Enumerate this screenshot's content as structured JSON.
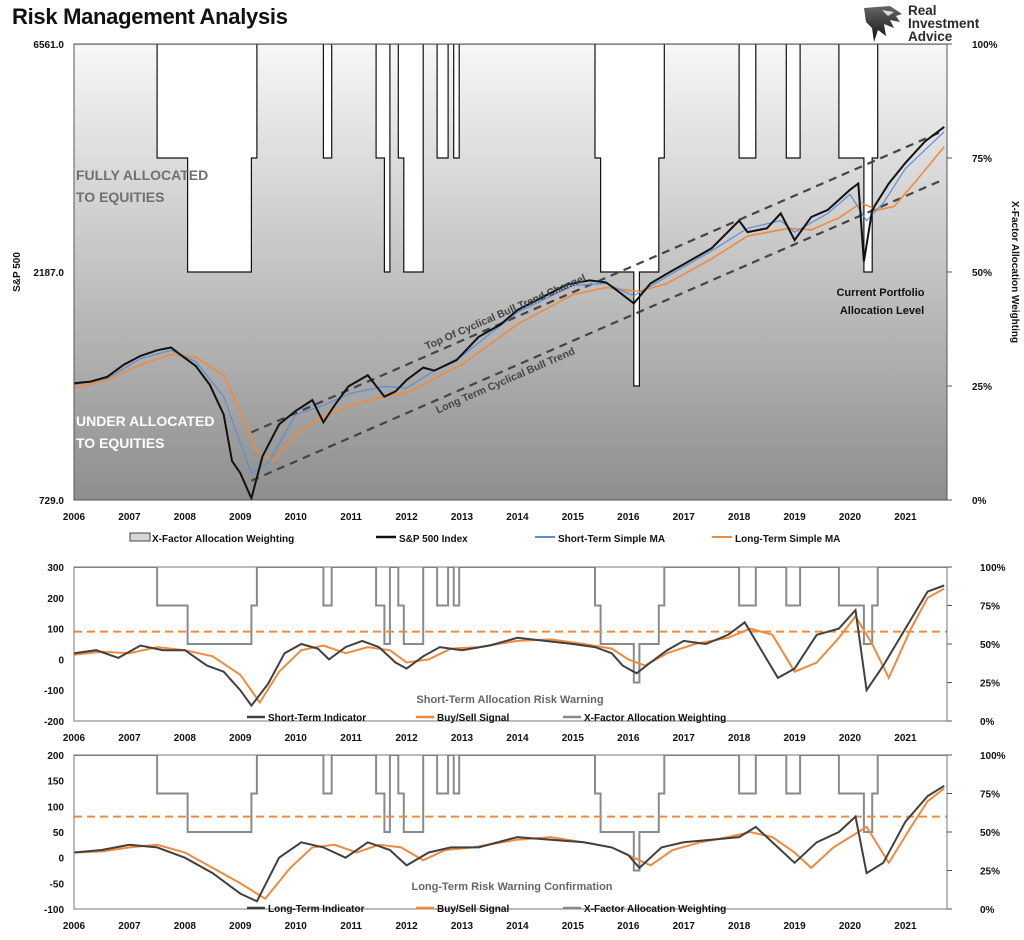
{
  "title": "Risk Management Analysis",
  "logo": {
    "lines": [
      "Real",
      "Investment",
      "Advice"
    ]
  },
  "colors": {
    "allocation_fill": "#ffffff",
    "allocation_line": "#111111",
    "sp500": "#111111",
    "short_ma": "#5b8fd4",
    "long_ma": "#f08a3c",
    "indicator": "#404040",
    "signal": "#f08a3c",
    "xfactor_line": "#8a8a8a",
    "threshold": "#f08a3c"
  },
  "chart_data": [
    {
      "type": "line",
      "id": "main",
      "xlim": [
        2006,
        2021.75
      ],
      "x_ticks": [
        "2006",
        "2007",
        "2008",
        "2009",
        "2010",
        "2011",
        "2012",
        "2013",
        "2014",
        "2015",
        "2016",
        "2017",
        "2018",
        "2019",
        "2020",
        "2021"
      ],
      "y_left": {
        "label": "S&P 500",
        "ticks": [
          "6561.0",
          "2187.0",
          "729.0"
        ],
        "scale": "log",
        "range": [
          729,
          6561
        ]
      },
      "y_right": {
        "label": "X-Factor Allocation Weighting",
        "ticks": [
          "100%",
          "75%",
          "50%",
          "25%",
          "0%"
        ],
        "range": [
          0,
          100
        ]
      },
      "allocation_steps": [
        [
          2006.0,
          100
        ],
        [
          2007.5,
          75
        ],
        [
          2008.05,
          50
        ],
        [
          2009.2,
          75
        ],
        [
          2009.3,
          100
        ],
        [
          2010.5,
          75
        ],
        [
          2010.65,
          100
        ],
        [
          2011.45,
          75
        ],
        [
          2011.6,
          50
        ],
        [
          2011.7,
          100
        ],
        [
          2011.85,
          75
        ],
        [
          2011.95,
          50
        ],
        [
          2012.3,
          100
        ],
        [
          2012.3,
          100
        ],
        [
          2012.55,
          75
        ],
        [
          2012.75,
          100
        ],
        [
          2012.85,
          75
        ],
        [
          2012.95,
          100
        ],
        [
          2015.4,
          75
        ],
        [
          2015.5,
          50
        ],
        [
          2016.1,
          25
        ],
        [
          2016.2,
          50
        ],
        [
          2016.55,
          75
        ],
        [
          2016.65,
          100
        ],
        [
          2017.5,
          100
        ],
        [
          2018.0,
          75
        ],
        [
          2018.3,
          100
        ],
        [
          2018.85,
          75
        ],
        [
          2019.1,
          100
        ],
        [
          2019.8,
          75
        ],
        [
          2020.25,
          50
        ],
        [
          2020.4,
          75
        ],
        [
          2020.5,
          100
        ],
        [
          2020.5,
          100
        ],
        [
          2021.75,
          100
        ]
      ],
      "sp500": {
        "name": "S&P 500 Index",
        "x": [
          2006.0,
          2006.3,
          2006.6,
          2006.9,
          2007.2,
          2007.5,
          2007.75,
          2007.95,
          2008.2,
          2008.45,
          2008.7,
          2008.85,
          2009.0,
          2009.2,
          2009.4,
          2009.7,
          2010.0,
          2010.3,
          2010.5,
          2010.7,
          2010.95,
          2011.3,
          2011.6,
          2011.8,
          2012.0,
          2012.3,
          2012.5,
          2012.9,
          2013.3,
          2013.7,
          2014.0,
          2014.5,
          2014.9,
          2015.3,
          2015.6,
          2015.8,
          2016.1,
          2016.4,
          2016.7,
          2017.0,
          2017.5,
          2018.0,
          2018.15,
          2018.5,
          2018.75,
          2019.0,
          2019.3,
          2019.6,
          2020.0,
          2020.15,
          2020.25,
          2020.4,
          2020.7,
          2021.0,
          2021.35,
          2021.7
        ],
        "values": [
          1280,
          1290,
          1320,
          1400,
          1460,
          1500,
          1520,
          1460,
          1390,
          1270,
          1100,
          880,
          830,
          735,
          900,
          1050,
          1120,
          1180,
          1060,
          1150,
          1260,
          1330,
          1200,
          1230,
          1300,
          1380,
          1360,
          1430,
          1600,
          1700,
          1820,
          1950,
          2060,
          2100,
          2080,
          2000,
          1880,
          2070,
          2170,
          2270,
          2450,
          2800,
          2650,
          2700,
          2900,
          2550,
          2850,
          2950,
          3250,
          3350,
          2300,
          2950,
          3350,
          3700,
          4100,
          4400
        ]
      },
      "short_ma": {
        "name": "Short-Term Simple MA",
        "x": [
          2006.0,
          2006.6,
          2007.2,
          2007.75,
          2008.2,
          2008.7,
          2009.0,
          2009.2,
          2009.5,
          2010.0,
          2010.5,
          2011.0,
          2011.6,
          2012.0,
          2012.5,
          2013.0,
          2014.0,
          2015.0,
          2015.6,
          2016.1,
          2016.7,
          2017.5,
          2018.15,
          2018.75,
          2019.0,
          2019.6,
          2020.0,
          2020.3,
          2020.6,
          2021.0,
          2021.7
        ],
        "values": [
          1270,
          1310,
          1440,
          1500,
          1420,
          1200,
          960,
          830,
          870,
          1100,
          1150,
          1220,
          1260,
          1250,
          1360,
          1460,
          1800,
          2050,
          2070,
          1950,
          2140,
          2420,
          2700,
          2800,
          2650,
          2900,
          3180,
          2800,
          3050,
          3600,
          4300
        ]
      },
      "long_ma": {
        "name": "Long-Term Simple MA",
        "x": [
          2006.0,
          2006.6,
          2007.2,
          2007.75,
          2008.2,
          2008.7,
          2009.0,
          2009.3,
          2009.6,
          2010.0,
          2010.5,
          2011.0,
          2011.6,
          2012.0,
          2012.5,
          2013.0,
          2014.0,
          2015.0,
          2015.6,
          2016.2,
          2016.7,
          2017.5,
          2018.15,
          2018.9,
          2019.3,
          2019.8,
          2020.2,
          2020.5,
          2020.8,
          2021.2,
          2021.7
        ],
        "values": [
          1250,
          1300,
          1400,
          1470,
          1450,
          1330,
          1120,
          920,
          880,
          1000,
          1090,
          1150,
          1200,
          1220,
          1310,
          1400,
          1700,
          1960,
          2030,
          1990,
          2070,
          2330,
          2600,
          2700,
          2680,
          2840,
          3050,
          2950,
          3000,
          3400,
          4000
        ]
      },
      "channel_lines": [
        {
          "label": "Top Of Cyclical Bull Trend Channel",
          "x": [
            2009.2,
            2021.65
          ],
          "values": [
            1010,
            4300
          ]
        },
        {
          "label": "Long Term Cyclical Bull Trend",
          "x": [
            2009.2,
            2021.65
          ],
          "values": [
            800,
            3400
          ]
        }
      ],
      "annotations": [
        "FULLY ALLOCATED\nTO EQUITIES",
        "UNDER ALLOCATED\nTO EQUITIES",
        "Current Portfolio\nAllocation Level"
      ],
      "legend": [
        "X-Factor Allocation Weighting",
        "S&P 500 Index",
        "Short-Term Simple MA",
        "Long-Term Simple MA"
      ]
    },
    {
      "type": "line",
      "id": "short_term",
      "title": "Short-Term Allocation Risk Warning",
      "xlim": [
        2006,
        2021.75
      ],
      "y_left": {
        "ticks": [
          "300",
          "200",
          "100",
          "0",
          "-100",
          "-200"
        ],
        "range": [
          -200,
          300
        ]
      },
      "y_right": {
        "ticks": [
          "100%",
          "75%",
          "50%",
          "25%",
          "0%"
        ],
        "range": [
          0,
          100
        ]
      },
      "threshold": 90,
      "indicator": {
        "name": "Short-Term Indicator",
        "x": [
          2006.0,
          2006.4,
          2006.8,
          2007.2,
          2007.6,
          2008.0,
          2008.4,
          2008.7,
          2009.0,
          2009.2,
          2009.5,
          2009.8,
          2010.1,
          2010.4,
          2010.6,
          2010.9,
          2011.2,
          2011.5,
          2011.8,
          2012.0,
          2012.3,
          2012.6,
          2013.0,
          2013.5,
          2014.0,
          2014.5,
          2015.0,
          2015.4,
          2015.7,
          2015.9,
          2016.15,
          2016.4,
          2016.7,
          2017.0,
          2017.4,
          2017.8,
          2018.1,
          2018.3,
          2018.7,
          2019.0,
          2019.4,
          2019.8,
          2020.1,
          2020.3,
          2020.6,
          2021.0,
          2021.4,
          2021.7
        ],
        "values": [
          20,
          30,
          5,
          45,
          30,
          30,
          -20,
          -40,
          -100,
          -150,
          -80,
          20,
          50,
          35,
          0,
          40,
          60,
          40,
          -10,
          -30,
          10,
          40,
          30,
          45,
          70,
          60,
          50,
          40,
          20,
          -20,
          -45,
          -10,
          30,
          60,
          50,
          80,
          120,
          60,
          -60,
          -30,
          80,
          100,
          160,
          -100,
          -20,
          100,
          220,
          240
        ]
      },
      "signal": {
        "name": "Buy/Sell Signal",
        "x": [
          2006.0,
          2006.5,
          2007.0,
          2007.5,
          2008.0,
          2008.5,
          2009.0,
          2009.35,
          2009.7,
          2010.1,
          2010.5,
          2010.9,
          2011.3,
          2011.7,
          2012.0,
          2012.4,
          2012.8,
          2013.3,
          2014.0,
          2014.6,
          2015.2,
          2015.7,
          2016.0,
          2016.3,
          2016.7,
          2017.2,
          2017.8,
          2018.2,
          2018.6,
          2019.0,
          2019.4,
          2019.8,
          2020.1,
          2020.4,
          2020.7,
          2021.1,
          2021.4,
          2021.7
        ],
        "values": [
          15,
          25,
          20,
          40,
          30,
          10,
          -50,
          -140,
          -40,
          30,
          45,
          20,
          40,
          30,
          -10,
          0,
          35,
          40,
          60,
          65,
          50,
          35,
          0,
          -20,
          20,
          50,
          70,
          100,
          80,
          -40,
          -10,
          70,
          140,
          50,
          -60,
          100,
          200,
          230
        ]
      },
      "xfactor": {
        "name": "X-Factor Allocation Weighting"
      },
      "legend": [
        "Short-Term Indicator",
        "Buy/Sell Signal",
        "X-Factor Allocation Weighting"
      ],
      "x_ticks": [
        "2006",
        "2007",
        "2008",
        "2009",
        "2010",
        "2011",
        "2012",
        "2013",
        "2014",
        "2015",
        "2016",
        "2017",
        "2018",
        "2019",
        "2020",
        "2021"
      ]
    },
    {
      "type": "line",
      "id": "long_term",
      "title": "Long-Term Risk Warning Confirmation",
      "xlim": [
        2006,
        2021.75
      ],
      "y_left": {
        "ticks": [
          "200",
          "150",
          "100",
          "50",
          "0",
          "-50",
          "-100"
        ],
        "range": [
          -100,
          200
        ]
      },
      "y_right": {
        "ticks": [
          "100%",
          "75%",
          "50%",
          "25%",
          "0%"
        ],
        "range": [
          0,
          100
        ]
      },
      "threshold": 80,
      "indicator": {
        "name": "Long-Term Indicator",
        "x": [
          2006.0,
          2006.5,
          2007.0,
          2007.5,
          2008.0,
          2008.5,
          2009.0,
          2009.3,
          2009.7,
          2010.1,
          2010.5,
          2010.9,
          2011.3,
          2011.7,
          2012.0,
          2012.4,
          2012.8,
          2013.3,
          2014.0,
          2014.6,
          2015.2,
          2015.7,
          2016.0,
          2016.2,
          2016.6,
          2017.0,
          2017.5,
          2018.0,
          2018.3,
          2018.7,
          2019.0,
          2019.4,
          2019.8,
          2020.1,
          2020.3,
          2020.6,
          2021.0,
          2021.4,
          2021.7
        ],
        "values": [
          10,
          15,
          25,
          20,
          0,
          -30,
          -70,
          -85,
          0,
          30,
          20,
          0,
          30,
          15,
          -15,
          10,
          20,
          20,
          40,
          35,
          30,
          20,
          5,
          -20,
          20,
          30,
          35,
          40,
          60,
          20,
          -10,
          30,
          50,
          80,
          -30,
          -10,
          70,
          120,
          140
        ]
      },
      "signal": {
        "name": "Buy/Sell Signal",
        "x": [
          2006.0,
          2006.5,
          2007.0,
          2007.5,
          2008.0,
          2008.5,
          2009.0,
          2009.45,
          2009.9,
          2010.3,
          2010.7,
          2011.1,
          2011.5,
          2011.9,
          2012.3,
          2012.7,
          2013.2,
          2014.0,
          2014.6,
          2015.2,
          2015.7,
          2016.1,
          2016.4,
          2016.8,
          2017.3,
          2017.8,
          2018.2,
          2018.6,
          2019.0,
          2019.3,
          2019.7,
          2020.0,
          2020.3,
          2020.7,
          2021.1,
          2021.4,
          2021.7
        ],
        "values": [
          10,
          12,
          20,
          25,
          10,
          -20,
          -50,
          -80,
          -20,
          20,
          25,
          10,
          25,
          20,
          -5,
          15,
          20,
          35,
          40,
          30,
          20,
          0,
          -15,
          15,
          30,
          40,
          50,
          40,
          10,
          -20,
          20,
          40,
          60,
          -10,
          60,
          110,
          135
        ]
      },
      "xfactor": {
        "name": "X-Factor Allocation Weighting"
      },
      "legend": [
        "Long-Term Indicator",
        "Buy/Sell Signal",
        "X-Factor Allocation Weighting"
      ],
      "x_ticks": [
        "2006",
        "2007",
        "2008",
        "2009",
        "2010",
        "2011",
        "2012",
        "2013",
        "2014",
        "2015",
        "2016",
        "2017",
        "2018",
        "2019",
        "2020",
        "2021"
      ]
    }
  ]
}
